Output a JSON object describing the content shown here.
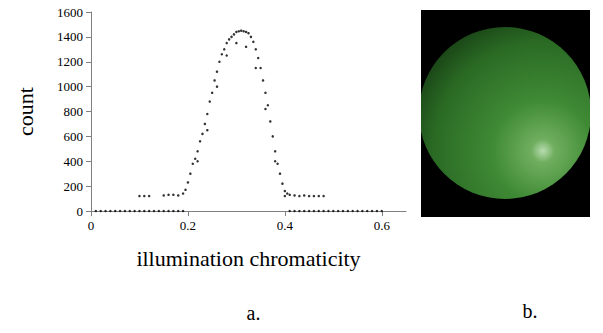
{
  "chart_data": {
    "type": "scatter",
    "title": "a.",
    "x_label": "illumination chromaticity",
    "y_label": "count",
    "x": [
      0.01,
      0.02,
      0.03,
      0.04,
      0.05,
      0.06,
      0.07,
      0.08,
      0.09,
      0.1,
      0.11,
      0.12,
      0.13,
      0.14,
      0.15,
      0.16,
      0.17,
      0.18,
      0.19,
      0.1,
      0.11,
      0.12,
      0.15,
      0.16,
      0.17,
      0.18,
      0.19,
      0.195,
      0.2,
      0.205,
      0.21,
      0.215,
      0.22,
      0.225,
      0.23,
      0.235,
      0.24,
      0.245,
      0.25,
      0.255,
      0.26,
      0.265,
      0.27,
      0.275,
      0.28,
      0.285,
      0.29,
      0.295,
      0.3,
      0.305,
      0.31,
      0.315,
      0.32,
      0.325,
      0.33,
      0.335,
      0.34,
      0.345,
      0.35,
      0.355,
      0.36,
      0.365,
      0.37,
      0.375,
      0.38,
      0.385,
      0.39,
      0.395,
      0.4,
      0.405,
      0.22,
      0.24,
      0.26,
      0.28,
      0.3,
      0.32,
      0.34,
      0.36,
      0.38,
      0.4,
      0.41,
      0.42,
      0.43,
      0.44,
      0.45,
      0.46,
      0.47,
      0.48,
      0.41,
      0.42,
      0.43,
      0.44,
      0.45,
      0.46,
      0.47,
      0.48,
      0.49,
      0.5,
      0.51,
      0.52,
      0.53,
      0.54,
      0.55,
      0.56,
      0.57,
      0.58,
      0.59,
      0.6
    ],
    "values": [
      0,
      0,
      0,
      0,
      0,
      0,
      0,
      0,
      0,
      0,
      0,
      0,
      0,
      0,
      0,
      0,
      0,
      0,
      0,
      120,
      120,
      120,
      125,
      130,
      130,
      125,
      140,
      170,
      230,
      300,
      380,
      420,
      480,
      560,
      620,
      700,
      780,
      880,
      950,
      1050,
      1120,
      1200,
      1260,
      1300,
      1350,
      1380,
      1400,
      1420,
      1440,
      1445,
      1450,
      1445,
      1440,
      1430,
      1400,
      1360,
      1300,
      1230,
      1150,
      1050,
      950,
      850,
      720,
      600,
      480,
      380,
      300,
      220,
      160,
      140,
      400,
      650,
      1000,
      1250,
      1350,
      1320,
      1150,
      820,
      400,
      120,
      130,
      125,
      120,
      125,
      120,
      120,
      120,
      120,
      0,
      0,
      0,
      0,
      0,
      0,
      0,
      0,
      0,
      0,
      0,
      0,
      0,
      0,
      0,
      0,
      0,
      0,
      0,
      0
    ],
    "color": "#000000",
    "marker": "circle",
    "xlim": [
      0,
      0.65
    ],
    "xticks": [
      0,
      0.2,
      0.4,
      0.6
    ],
    "ylim": [
      0,
      1600
    ],
    "yticks": [
      0,
      200,
      400,
      600,
      800,
      1000,
      1200,
      1400,
      1600
    ],
    "grid": false
  },
  "image": {
    "label": "b."
  }
}
